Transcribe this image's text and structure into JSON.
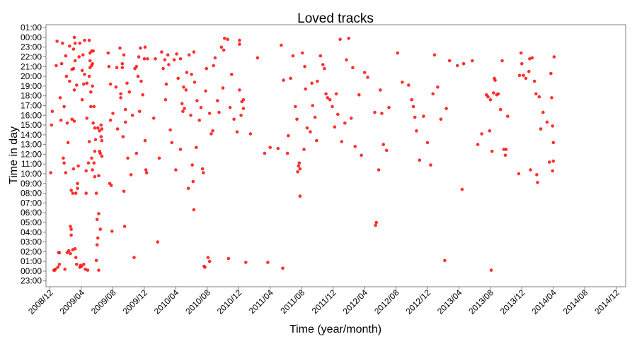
{
  "chart_data": {
    "type": "scatter",
    "title": "Loved tracks",
    "xlabel": "Time (year/month)",
    "ylabel": "Time in day",
    "point_color": "#ff1a1a",
    "x_ticks": [
      "2008/12",
      "2009/04",
      "2009/08",
      "2009/12",
      "2010/04",
      "2010/08",
      "2010/12",
      "2011/04",
      "2011/08",
      "2011/12",
      "2012/04",
      "2012/08",
      "2012/12",
      "2013/04",
      "2013/08",
      "2013/12",
      "2014/04",
      "2014/08",
      "2014/12"
    ],
    "y_ticks": [
      "23:00",
      "00:00",
      "01:00",
      "02:00",
      "03:00",
      "04:00",
      "05:00",
      "06:00",
      "07:00",
      "08:00",
      "09:00",
      "10:00",
      "11:00",
      "12:00",
      "13:00",
      "14:00",
      "15:00",
      "16:00",
      "17:00",
      "18:00",
      "19:00",
      "20:00",
      "21:00",
      "22:00",
      "23:00",
      "00:00",
      "01:00"
    ],
    "y_range_hours": [
      -1.6,
      25.3
    ],
    "x_range_months": [
      -0.5,
      73.2
    ],
    "x_unit": "months since 2008/12",
    "y_unit": "hours after 00:00",
    "points": [
      [
        0.1,
        10.1
      ],
      [
        0.2,
        15.0
      ],
      [
        0.3,
        16.4
      ],
      [
        0.5,
        0.1
      ],
      [
        0.6,
        0.1
      ],
      [
        0.7,
        0.2
      ],
      [
        0.8,
        21.1
      ],
      [
        0.9,
        23.6
      ],
      [
        1.0,
        0.4
      ],
      [
        1.1,
        1.9
      ],
      [
        1.2,
        0.7
      ],
      [
        1.2,
        1.9
      ],
      [
        1.3,
        17.8
      ],
      [
        1.4,
        15.5
      ],
      [
        1.5,
        21.3
      ],
      [
        1.6,
        23.4
      ],
      [
        1.7,
        11.6
      ],
      [
        1.8,
        11.1
      ],
      [
        1.8,
        16.9
      ],
      [
        1.9,
        0.2
      ],
      [
        2.0,
        10.1
      ],
      [
        2.0,
        22.1
      ],
      [
        2.1,
        20.0
      ],
      [
        2.2,
        1.9
      ],
      [
        2.2,
        15.2
      ],
      [
        2.3,
        13.2
      ],
      [
        2.4,
        2.1
      ],
      [
        2.5,
        23.1
      ],
      [
        2.5,
        19.5
      ],
      [
        2.6,
        1.8
      ],
      [
        2.6,
        4.6
      ],
      [
        2.7,
        4.3
      ],
      [
        2.7,
        3.7
      ],
      [
        2.7,
        8.3
      ],
      [
        2.8,
        20.7
      ],
      [
        2.8,
        15.6
      ],
      [
        2.9,
        2.2
      ],
      [
        2.9,
        8.0
      ],
      [
        3.0,
        10.5
      ],
      [
        3.0,
        20.8
      ],
      [
        3.0,
        22.8
      ],
      [
        3.1,
        24.0
      ],
      [
        3.1,
        18.6
      ],
      [
        3.1,
        15.4
      ],
      [
        3.2,
        23.4
      ],
      [
        3.2,
        21.6
      ],
      [
        3.2,
        2.3
      ],
      [
        3.3,
        8.0
      ],
      [
        3.3,
        1.4
      ],
      [
        3.4,
        0.7
      ],
      [
        3.4,
        19.1
      ],
      [
        3.5,
        8.5
      ],
      [
        3.5,
        9.0
      ],
      [
        3.6,
        10.8
      ],
      [
        3.7,
        22.0
      ],
      [
        3.8,
        23.4
      ],
      [
        3.8,
        0.4
      ],
      [
        3.9,
        0.6
      ],
      [
        4.0,
        0.5
      ],
      [
        4.1,
        20.6
      ],
      [
        4.1,
        17.6
      ],
      [
        4.2,
        22.2
      ],
      [
        4.3,
        19.2
      ],
      [
        4.3,
        0.7
      ],
      [
        4.4,
        20.2
      ],
      [
        4.4,
        23.7
      ],
      [
        4.5,
        0.2
      ],
      [
        4.6,
        8.0
      ],
      [
        4.6,
        10.3
      ],
      [
        4.7,
        19.3
      ],
      [
        4.7,
        15.7
      ],
      [
        4.8,
        0.1
      ],
      [
        4.9,
        11.1
      ],
      [
        5.0,
        13.3
      ],
      [
        5.0,
        23.7
      ],
      [
        5.0,
        20.0
      ],
      [
        5.1,
        20.9
      ],
      [
        5.1,
        21.6
      ],
      [
        5.1,
        22.4
      ],
      [
        5.2,
        18.4
      ],
      [
        5.2,
        16.9
      ],
      [
        5.3,
        21.1
      ],
      [
        5.3,
        22.6
      ],
      [
        5.3,
        11.6
      ],
      [
        5.4,
        19.0
      ],
      [
        5.4,
        21.3
      ],
      [
        5.4,
        10.4
      ],
      [
        5.5,
        22.6
      ],
      [
        5.5,
        15.2
      ],
      [
        5.6,
        16.9
      ],
      [
        5.6,
        11.1
      ],
      [
        5.7,
        14.7
      ],
      [
        5.7,
        12.3
      ],
      [
        5.7,
        9.7
      ],
      [
        5.8,
        13.5
      ],
      [
        5.9,
        1.1
      ],
      [
        5.9,
        8.0
      ],
      [
        6.0,
        2.7
      ],
      [
        6.0,
        5.3
      ],
      [
        6.1,
        14.7
      ],
      [
        6.1,
        3.4
      ],
      [
        6.2,
        0.1
      ],
      [
        6.2,
        9.8
      ],
      [
        6.2,
        5.9
      ],
      [
        6.3,
        12.3
      ],
      [
        6.3,
        14.4
      ],
      [
        6.4,
        4.3
      ],
      [
        6.4,
        12.1
      ],
      [
        6.5,
        15.0
      ],
      [
        6.5,
        13.8
      ],
      [
        6.6,
        11.8
      ],
      [
        6.6,
        14.6
      ],
      [
        6.6,
        13.4
      ],
      [
        7.4,
        22.4
      ],
      [
        7.5,
        21.0
      ],
      [
        7.6,
        9.0
      ],
      [
        7.7,
        15.5
      ],
      [
        7.7,
        19.2
      ],
      [
        7.8,
        8.8
      ],
      [
        7.9,
        4.1
      ],
      [
        8.0,
        16.2
      ],
      [
        8.4,
        18.9
      ],
      [
        8.5,
        20.9
      ],
      [
        8.6,
        14.6
      ],
      [
        8.9,
        22.9
      ],
      [
        9.0,
        18.2
      ],
      [
        9.0,
        17.8
      ],
      [
        9.2,
        21.3
      ],
      [
        9.2,
        20.9
      ],
      [
        9.3,
        13.8
      ],
      [
        9.4,
        22.2
      ],
      [
        9.4,
        8.2
      ],
      [
        9.5,
        4.6
      ],
      [
        9.6,
        16.6
      ],
      [
        9.6,
        15.3
      ],
      [
        9.8,
        19.3
      ],
      [
        9.9,
        11.6
      ],
      [
        10.1,
        18.4
      ],
      [
        10.3,
        9.9
      ],
      [
        10.5,
        16.0
      ],
      [
        10.7,
        1.4
      ],
      [
        10.8,
        20.8
      ],
      [
        11.0,
        21.0
      ],
      [
        11.0,
        12.1
      ],
      [
        11.2,
        20.0
      ],
      [
        11.3,
        22.0
      ],
      [
        11.4,
        16.4
      ],
      [
        11.5,
        22.9
      ],
      [
        11.6,
        19.5
      ],
      [
        11.8,
        18.1
      ],
      [
        12.0,
        21.8
      ],
      [
        12.1,
        23.0
      ],
      [
        12.1,
        13.4
      ],
      [
        12.2,
        10.4
      ],
      [
        12.3,
        10.1
      ],
      [
        12.4,
        21.8
      ],
      [
        13.2,
        15.7
      ],
      [
        13.4,
        21.8
      ],
      [
        13.7,
        3.0
      ],
      [
        13.9,
        11.6
      ],
      [
        14.2,
        22.5
      ],
      [
        14.4,
        20.8
      ],
      [
        14.6,
        21.7
      ],
      [
        14.7,
        17.6
      ],
      [
        14.8,
        19.2
      ],
      [
        15.0,
        22.2
      ],
      [
        15.1,
        21.2
      ],
      [
        15.3,
        14.5
      ],
      [
        15.5,
        13.2
      ],
      [
        15.8,
        21.7
      ],
      [
        16.0,
        10.4
      ],
      [
        16.1,
        22.3
      ],
      [
        16.3,
        19.8
      ],
      [
        16.6,
        12.5
      ],
      [
        16.6,
        21.8
      ],
      [
        16.8,
        17.2
      ],
      [
        16.9,
        16.4
      ],
      [
        17.0,
        18.9
      ],
      [
        17.1,
        16.7
      ],
      [
        17.3,
        18.6
      ],
      [
        17.4,
        20.4
      ],
      [
        17.6,
        8.5
      ],
      [
        17.7,
        22.2
      ],
      [
        17.9,
        16.0
      ],
      [
        18.0,
        20.2
      ],
      [
        18.1,
        10.9
      ],
      [
        18.2,
        9.2
      ],
      [
        18.3,
        22.5
      ],
      [
        18.3,
        6.3
      ],
      [
        18.4,
        19.4
      ],
      [
        18.6,
        12.7
      ],
      [
        18.7,
        17.5
      ],
      [
        19.0,
        15.5
      ],
      [
        19.2,
        16.8
      ],
      [
        19.4,
        10.5
      ],
      [
        19.5,
        10.1
      ],
      [
        19.6,
        0.5
      ],
      [
        19.7,
        0.4
      ],
      [
        19.8,
        18.5
      ],
      [
        19.9,
        20.8
      ],
      [
        20.1,
        1.4
      ],
      [
        20.3,
        1.0
      ],
      [
        20.3,
        16.2
      ],
      [
        20.5,
        14.1
      ],
      [
        20.7,
        14.4
      ],
      [
        20.8,
        21.1
      ],
      [
        21.0,
        21.9
      ],
      [
        21.3,
        17.5
      ],
      [
        21.5,
        16.3
      ],
      [
        21.8,
        23.0
      ],
      [
        22.0,
        18.8
      ],
      [
        22.1,
        22.7
      ],
      [
        22.2,
        23.9
      ],
      [
        22.6,
        23.8
      ],
      [
        22.7,
        1.3
      ],
      [
        22.9,
        16.8
      ],
      [
        23.1,
        20.2
      ],
      [
        23.4,
        15.6
      ],
      [
        23.8,
        14.3
      ],
      [
        24.1,
        23.3
      ],
      [
        24.1,
        18.6
      ],
      [
        24.1,
        23.7
      ],
      [
        24.3,
        16.0
      ],
      [
        24.4,
        17.4
      ],
      [
        24.6,
        17.6
      ],
      [
        24.6,
        16.7
      ],
      [
        24.9,
        0.9
      ],
      [
        25.5,
        14.1
      ],
      [
        26.4,
        21.9
      ],
      [
        27.3,
        12.1
      ],
      [
        27.7,
        0.9
      ],
      [
        28.0,
        12.7
      ],
      [
        29.0,
        12.6
      ],
      [
        29.4,
        23.2
      ],
      [
        29.6,
        0.3
      ],
      [
        29.7,
        19.6
      ],
      [
        30.2,
        12.1
      ],
      [
        30.3,
        13.9
      ],
      [
        30.6,
        19.8
      ],
      [
        30.9,
        22.1
      ],
      [
        31.2,
        16.9
      ],
      [
        31.4,
        15.6
      ],
      [
        31.5,
        10.2
      ],
      [
        31.6,
        10.8
      ],
      [
        31.7,
        11.1
      ],
      [
        31.8,
        10.5
      ],
      [
        31.8,
        7.7
      ],
      [
        32.1,
        22.4
      ],
      [
        32.3,
        12.5
      ],
      [
        32.4,
        21.0
      ],
      [
        32.5,
        18.7
      ],
      [
        32.7,
        14.7
      ],
      [
        33.1,
        14.3
      ],
      [
        33.3,
        19.3
      ],
      [
        33.4,
        17.0
      ],
      [
        33.7,
        15.8
      ],
      [
        33.9,
        13.4
      ],
      [
        34.0,
        19.5
      ],
      [
        34.4,
        22.1
      ],
      [
        34.7,
        21.2
      ],
      [
        34.9,
        20.8
      ],
      [
        35.1,
        18.2
      ],
      [
        35.3,
        17.8
      ],
      [
        35.6,
        17.6
      ],
      [
        35.9,
        16.9
      ],
      [
        36.2,
        14.8
      ],
      [
        36.4,
        18.2
      ],
      [
        36.6,
        16.1
      ],
      [
        36.9,
        23.8
      ],
      [
        37.1,
        13.3
      ],
      [
        37.5,
        15.2
      ],
      [
        37.7,
        21.7
      ],
      [
        38.0,
        23.9
      ],
      [
        38.3,
        15.7
      ],
      [
        38.5,
        20.9
      ],
      [
        38.8,
        12.8
      ],
      [
        39.3,
        18.1
      ],
      [
        39.6,
        11.9
      ],
      [
        40.0,
        20.4
      ],
      [
        40.4,
        19.9
      ],
      [
        41.3,
        16.3
      ],
      [
        41.4,
        4.7
      ],
      [
        41.5,
        5.0
      ],
      [
        41.8,
        10.4
      ],
      [
        42.0,
        18.6
      ],
      [
        42.2,
        16.2
      ],
      [
        42.4,
        13.0
      ],
      [
        42.8,
        12.4
      ],
      [
        43.1,
        16.8
      ],
      [
        44.2,
        22.4
      ],
      [
        44.8,
        19.4
      ],
      [
        45.6,
        19.1
      ],
      [
        46.0,
        17.6
      ],
      [
        46.2,
        16.9
      ],
      [
        46.4,
        15.8
      ],
      [
        46.6,
        14.4
      ],
      [
        47.0,
        11.4
      ],
      [
        47.5,
        15.9
      ],
      [
        48.0,
        13.2
      ],
      [
        48.4,
        10.9
      ],
      [
        48.7,
        18.2
      ],
      [
        48.9,
        22.2
      ],
      [
        49.3,
        18.9
      ],
      [
        49.7,
        15.6
      ],
      [
        50.2,
        1.1
      ],
      [
        50.4,
        16.7
      ],
      [
        50.8,
        21.6
      ],
      [
        51.8,
        21.1
      ],
      [
        52.4,
        8.4
      ],
      [
        52.6,
        21.3
      ],
      [
        53.7,
        21.6
      ],
      [
        54.4,
        13.0
      ],
      [
        54.9,
        14.1
      ],
      [
        55.5,
        18.1
      ],
      [
        55.7,
        17.9
      ],
      [
        55.9,
        14.4
      ],
      [
        56.0,
        17.6
      ],
      [
        56.2,
        12.3
      ],
      [
        56.4,
        18.3
      ],
      [
        56.5,
        19.8
      ],
      [
        56.6,
        19.6
      ],
      [
        56.8,
        18.1
      ],
      [
        57.0,
        18.2
      ],
      [
        57.3,
        16.6
      ],
      [
        57.5,
        21.6
      ],
      [
        57.7,
        12.5
      ],
      [
        57.9,
        11.9
      ],
      [
        58.0,
        12.5
      ],
      [
        58.2,
        15.9
      ],
      [
        59.6,
        10.0
      ],
      [
        59.7,
        20.1
      ],
      [
        59.9,
        22.4
      ],
      [
        60.0,
        21.3
      ],
      [
        60.2,
        20.1
      ],
      [
        60.5,
        19.8
      ],
      [
        60.9,
        20.5
      ],
      [
        61.1,
        10.4
      ],
      [
        61.3,
        21.9
      ],
      [
        61.6,
        19.5
      ],
      [
        61.8,
        18.2
      ],
      [
        61.9,
        9.9
      ],
      [
        62.0,
        9.1
      ],
      [
        62.2,
        17.9
      ],
      [
        62.4,
        14.6
      ],
      [
        62.7,
        16.3
      ],
      [
        63.2,
        15.3
      ],
      [
        63.5,
        11.2
      ],
      [
        63.7,
        20.3
      ],
      [
        63.8,
        17.8
      ],
      [
        63.9,
        14.9
      ],
      [
        64.0,
        13.2
      ],
      [
        64.1,
        22.0
      ],
      [
        61.0,
        21.8
      ],
      [
        56.1,
        0.1
      ],
      [
        63.9,
        10.3
      ],
      [
        64.0,
        11.3
      ]
    ]
  }
}
